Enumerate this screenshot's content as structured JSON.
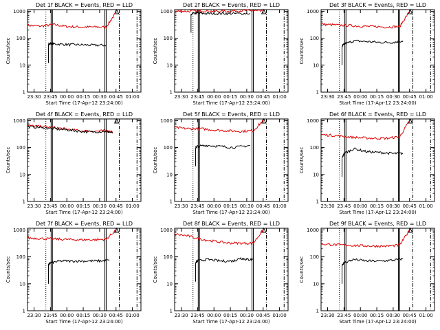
{
  "chart_data": {
    "type": "line",
    "y_scale": "log",
    "ylim": [
      1,
      1000
    ],
    "y_tick_labels": [
      "1",
      "10",
      "100",
      "1000"
    ],
    "x_tick_labels": [
      "23:30",
      "23:45",
      "00:00",
      "00:15",
      "00:30",
      "00:45",
      "01:00"
    ],
    "x_tick_hours": [
      23.5,
      23.75,
      24.0,
      24.25,
      24.5,
      24.75,
      25.0
    ],
    "xlim_hours": [
      23.4,
      25.13
    ],
    "xlabel": "Start Time (17-Apr-12 23:24:00)",
    "ylabel": "Counts/sec",
    "series_colors": {
      "events": "#000000",
      "lld": "#dd0000"
    },
    "markers": {
      "dotted": [
        23.68
      ],
      "solid_pairs": [
        [
          23.76,
          23.78
        ],
        [
          24.58,
          24.6
        ]
      ],
      "dashed": [
        24.8,
        25.07
      ],
      "flag_x": 24.76
    },
    "panels": [
      {
        "title": "Det 1f BLACK = Events, RED = LLD",
        "events": {
          "x": [
            23.72,
            23.75,
            23.8,
            24.0,
            24.2,
            24.4,
            24.6
          ],
          "y": [
            60,
            65,
            62,
            58,
            57,
            55,
            55
          ]
        },
        "lld": {
          "x": [
            23.4,
            23.6,
            23.8,
            24.0,
            24.2,
            24.4,
            24.6,
            24.75
          ],
          "y": [
            300,
            280,
            320,
            270,
            260,
            260,
            260,
            900
          ]
        }
      },
      {
        "title": "Det 2f BLACK = Events, RED = LLD",
        "events": {
          "x": [
            23.65,
            23.75,
            23.9,
            24.1,
            24.3,
            24.55
          ],
          "y": [
            800,
            850,
            820,
            830,
            820,
            830
          ]
        },
        "lld": {
          "x": [
            23.4,
            23.6,
            23.8,
            24.0,
            24.2,
            24.4,
            24.6,
            24.75
          ],
          "y": [
            1000,
            1000,
            1050,
            1000,
            1000,
            1050,
            1050,
            1000
          ]
        }
      },
      {
        "title": "Det 3f BLACK = Events, RED = LLD",
        "events": {
          "x": [
            23.72,
            23.75,
            23.9,
            24.1,
            24.3,
            24.5,
            24.65
          ],
          "y": [
            50,
            60,
            80,
            75,
            70,
            70,
            80
          ]
        },
        "lld": {
          "x": [
            23.4,
            23.6,
            23.8,
            24.0,
            24.2,
            24.4,
            24.6,
            24.75
          ],
          "y": [
            330,
            310,
            300,
            280,
            270,
            260,
            270,
            1000
          ]
        }
      },
      {
        "title": "Det 4f BLACK = Events, RED = LLD",
        "events": {
          "x": [
            23.4,
            23.6,
            23.8,
            24.0,
            24.2,
            24.4,
            24.6,
            24.7
          ],
          "y": [
            600,
            550,
            500,
            450,
            400,
            380,
            400,
            350
          ]
        },
        "lld": {
          "x": [
            23.4,
            23.6,
            23.8,
            24.0,
            24.2,
            24.4,
            24.6,
            24.7
          ],
          "y": [
            650,
            600,
            550,
            480,
            420,
            400,
            420,
            380
          ]
        }
      },
      {
        "title": "Det 5f BLACK = Events, RED = LLD",
        "events": {
          "x": [
            23.72,
            23.75,
            23.9,
            24.1,
            24.3,
            24.55
          ],
          "y": [
            100,
            110,
            120,
            110,
            100,
            120
          ]
        },
        "lld": {
          "x": [
            23.4,
            23.6,
            23.8,
            24.0,
            24.2,
            24.4,
            24.6,
            24.75
          ],
          "y": [
            550,
            500,
            500,
            450,
            420,
            400,
            420,
            1000
          ]
        }
      },
      {
        "title": "Det 6f BLACK = Events, RED = LLD",
        "events": {
          "x": [
            23.72,
            23.75,
            23.9,
            24.1,
            24.3,
            24.5,
            24.65
          ],
          "y": [
            40,
            60,
            90,
            70,
            65,
            60,
            60
          ]
        },
        "lld": {
          "x": [
            23.4,
            23.6,
            23.8,
            24.0,
            24.2,
            24.4,
            24.6,
            24.75
          ],
          "y": [
            300,
            280,
            250,
            230,
            220,
            220,
            250,
            1000
          ]
        }
      },
      {
        "title": "Det 7f BLACK = Events, RED = LLD",
        "events": {
          "x": [
            23.72,
            23.75,
            23.9,
            24.1,
            24.3,
            24.5,
            24.65
          ],
          "y": [
            50,
            60,
            70,
            70,
            70,
            70,
            75
          ]
        },
        "lld": {
          "x": [
            23.4,
            23.6,
            23.8,
            24.0,
            24.2,
            24.4,
            24.6,
            24.75
          ],
          "y": [
            500,
            480,
            460,
            440,
            430,
            430,
            450,
            1000
          ]
        }
      },
      {
        "title": "Det 8f BLACK = Events, RED = LLD",
        "events": {
          "x": [
            23.72,
            23.75,
            23.9,
            24.1,
            24.3,
            24.4,
            24.5,
            24.6
          ],
          "y": [
            60,
            70,
            80,
            70,
            70,
            90,
            80,
            80
          ]
        },
        "lld": {
          "x": [
            23.4,
            23.6,
            23.8,
            24.0,
            24.2,
            24.4,
            24.6,
            24.75
          ],
          "y": [
            700,
            600,
            450,
            380,
            330,
            320,
            320,
            1000
          ]
        }
      },
      {
        "title": "Det 9f BLACK = Events, RED = LLD",
        "events": {
          "x": [
            23.72,
            23.75,
            23.9,
            24.1,
            24.3,
            24.5,
            24.65
          ],
          "y": [
            50,
            60,
            80,
            70,
            70,
            75,
            85
          ]
        },
        "lld": {
          "x": [
            23.4,
            23.6,
            23.8,
            24.0,
            24.2,
            24.4,
            24.6,
            24.75
          ],
          "y": [
            300,
            280,
            270,
            260,
            250,
            250,
            270,
            1000
          ]
        }
      }
    ]
  }
}
